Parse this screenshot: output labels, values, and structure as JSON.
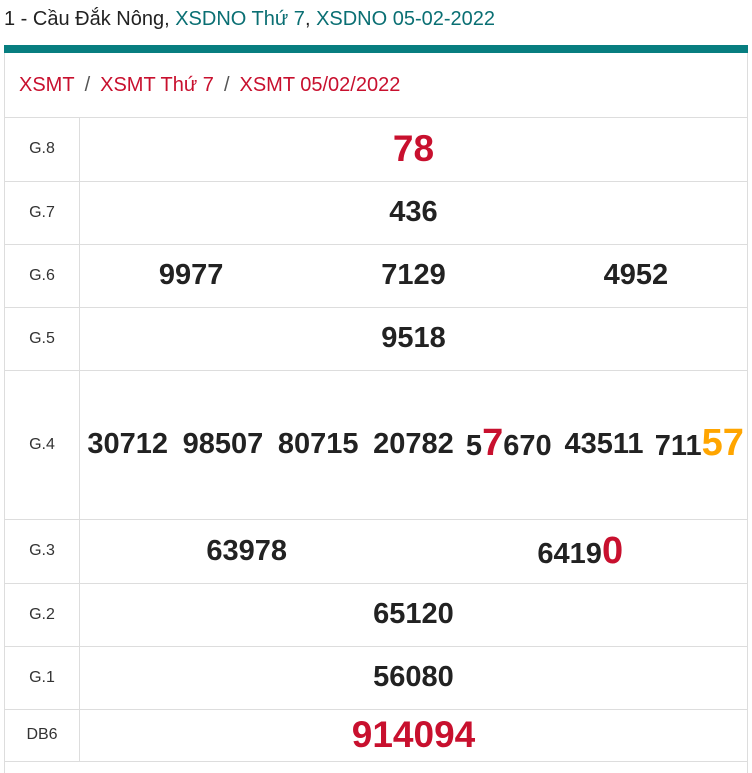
{
  "title": {
    "prefix": "1 - Cầu Đắk Nông, ",
    "link1": "XSDNO Thứ 7",
    "sep": ", ",
    "link2": "XSDNO 05-02-2022"
  },
  "breadcrumb": [
    "XSMT",
    "XSMT Thứ 7",
    "XSMT 05/02/2022"
  ],
  "breadcrumb_sep": "/",
  "colors": {
    "accent": "#077e80",
    "red": "#c8102e",
    "orange": "#ffa500"
  },
  "rows": [
    {
      "label": "G.8",
      "numbers": [
        {
          "pre": "78",
          "hl": "",
          "post": "",
          "color": "#c8102e",
          "big": true
        }
      ]
    },
    {
      "label": "G.7",
      "numbers": [
        {
          "pre": "436",
          "hl": "",
          "post": ""
        }
      ]
    },
    {
      "label": "G.6",
      "numbers": [
        {
          "pre": "9977",
          "hl": "",
          "post": ""
        },
        {
          "pre": "7129",
          "hl": "",
          "post": ""
        },
        {
          "pre": "4952",
          "hl": "",
          "post": ""
        }
      ]
    },
    {
      "label": "G.5",
      "numbers": [
        {
          "pre": "9518",
          "hl": "",
          "post": ""
        }
      ]
    },
    {
      "label": "G.4",
      "multi": true,
      "numbers": [
        {
          "pre": "30712",
          "hl": "",
          "post": ""
        },
        {
          "pre": "98507",
          "hl": "",
          "post": ""
        },
        {
          "pre": "80715",
          "hl": "",
          "post": ""
        },
        {
          "pre": "20782",
          "hl": "",
          "post": ""
        },
        {
          "pre": "5",
          "hl": "7",
          "post": "670",
          "hlcolor": "#c8102e"
        },
        {
          "pre": "43511",
          "hl": "",
          "post": ""
        },
        {
          "pre": "711",
          "hl": "57",
          "post": "",
          "hlcolor": "#ffa500"
        }
      ]
    },
    {
      "label": "G.3",
      "numbers": [
        {
          "pre": "63978",
          "hl": "",
          "post": ""
        },
        {
          "pre": "6419",
          "hl": "0",
          "post": "",
          "hlcolor": "#c8102e"
        }
      ]
    },
    {
      "label": "G.2",
      "numbers": [
        {
          "pre": "65120",
          "hl": "",
          "post": ""
        }
      ]
    },
    {
      "label": "G.1",
      "numbers": [
        {
          "pre": "56080",
          "hl": "",
          "post": ""
        }
      ]
    },
    {
      "label": "DB6",
      "numbers": [
        {
          "pre": "914094",
          "hl": "",
          "post": "",
          "color": "#c8102e",
          "big": true
        }
      ]
    }
  ]
}
